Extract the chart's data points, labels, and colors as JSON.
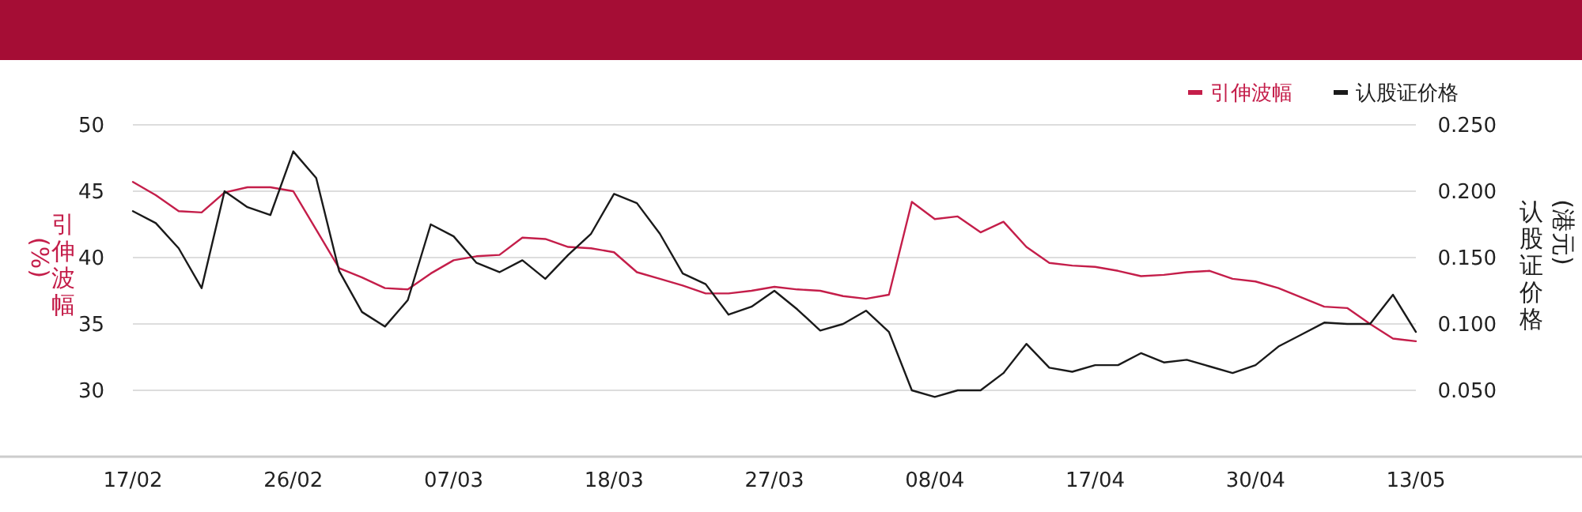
{
  "chart_data": {
    "type": "line",
    "categories": [
      "17/02",
      null,
      null,
      null,
      null,
      null,
      null,
      "26/02",
      null,
      null,
      null,
      null,
      null,
      null,
      "07/03",
      null,
      null,
      null,
      null,
      null,
      null,
      "18/03",
      null,
      null,
      null,
      null,
      null,
      null,
      "27/03",
      null,
      null,
      null,
      null,
      null,
      null,
      "08/04",
      null,
      null,
      null,
      null,
      null,
      null,
      "17/04",
      null,
      null,
      null,
      null,
      null,
      null,
      "30/04",
      null,
      null,
      null,
      null,
      null,
      null,
      "13/05"
    ],
    "series": [
      {
        "name": "引伸波幅",
        "color": "#c41e4a",
        "values": [
          45.7,
          44.7,
          43.5,
          43.4,
          44.9,
          45.3,
          45.3,
          45.0,
          42.1,
          39.2,
          38.5,
          37.7,
          37.6,
          38.8,
          39.8,
          40.1,
          40.2,
          41.5,
          41.4,
          40.8,
          40.7,
          40.4,
          38.9,
          38.4,
          37.9,
          37.3,
          37.3,
          37.5,
          37.8,
          37.6,
          37.5,
          37.1,
          36.9,
          37.2,
          44.2,
          42.9,
          43.1,
          41.9,
          42.7,
          40.8,
          39.6,
          39.4,
          39.3,
          39.0,
          38.6,
          38.7,
          38.9,
          39.0,
          38.4,
          38.2,
          37.7,
          37.0,
          36.3,
          36.2,
          35.0,
          33.9,
          33.7
        ]
      },
      {
        "name": "认股证价格",
        "color": "#1a1a1a",
        "axis": "y2",
        "values": [
          0.185,
          0.176,
          0.157,
          0.127,
          0.2,
          0.188,
          0.182,
          0.23,
          0.21,
          0.14,
          0.109,
          0.098,
          0.118,
          0.175,
          0.166,
          0.146,
          0.139,
          0.148,
          0.134,
          0.152,
          0.168,
          0.198,
          0.191,
          0.168,
          0.138,
          0.13,
          0.107,
          0.113,
          0.125,
          0.111,
          0.095,
          0.1,
          0.11,
          0.094,
          0.05,
          0.045,
          0.05,
          0.05,
          0.063,
          0.085,
          0.067,
          0.064,
          0.069,
          0.069,
          0.078,
          0.071,
          0.073,
          0.068,
          0.063,
          0.069,
          0.083,
          0.092,
          0.101,
          0.1,
          0.1,
          0.122,
          0.094
        ]
      }
    ],
    "ylabel": "引伸波幅 (%)",
    "y2label": "认股证价格 (港元)",
    "ylim": [
      25,
      50
    ],
    "yticks": [
      30,
      35,
      40,
      45,
      50
    ],
    "y2lim": [
      0,
      0.25
    ],
    "y2ticks": [
      {
        "value": 0.05,
        "label": "0.050"
      },
      {
        "value": 0.1,
        "label": "0.100"
      },
      {
        "value": 0.15,
        "label": "0.150"
      },
      {
        "value": 0.2,
        "label": "0.200"
      },
      {
        "value": 0.25,
        "label": "0.250"
      }
    ],
    "grid": "y",
    "legend": "top right"
  }
}
